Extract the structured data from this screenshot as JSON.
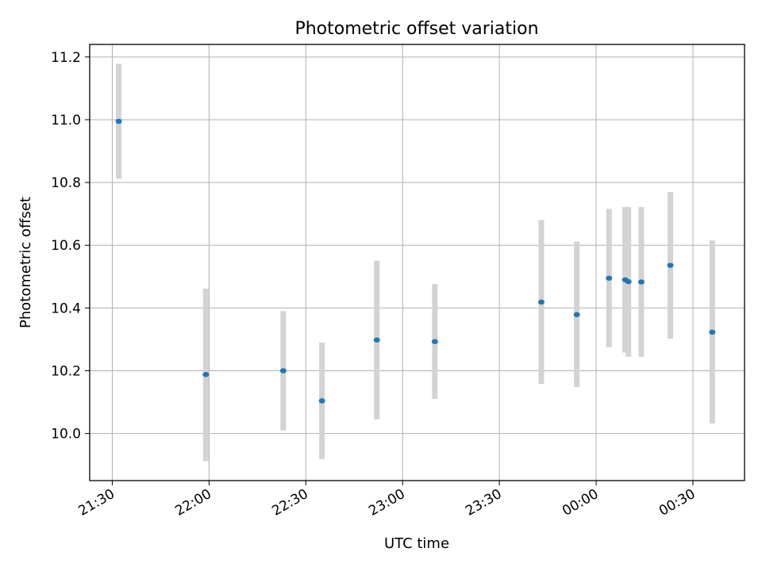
{
  "chart_data": {
    "type": "scatter",
    "title": "Photometric offset variation",
    "xlabel": "UTC time",
    "ylabel": "Photometric offset",
    "x_ticks": [
      "21:30",
      "22:00",
      "22:30",
      "23:00",
      "23:30",
      "00:00",
      "00:30"
    ],
    "y_ticks": [
      "10.0",
      "10.2",
      "10.4",
      "10.6",
      "10.8",
      "11.0",
      "11.2"
    ],
    "xlim": [
      "21:23",
      "00:46"
    ],
    "ylim": [
      9.85,
      11.24
    ],
    "grid": true,
    "marker_color": "#1f77b4",
    "errorbar_color": "#d3d3d3",
    "points": [
      {
        "x": "21:32",
        "y": 10.995,
        "ylow": 10.812,
        "yhigh": 11.178
      },
      {
        "x": "21:59",
        "y": 10.188,
        "ylow": 9.912,
        "yhigh": 10.462
      },
      {
        "x": "22:23",
        "y": 10.2,
        "ylow": 10.01,
        "yhigh": 10.39
      },
      {
        "x": "22:35",
        "y": 10.104,
        "ylow": 9.918,
        "yhigh": 10.29
      },
      {
        "x": "22:52",
        "y": 10.298,
        "ylow": 10.045,
        "yhigh": 10.551
      },
      {
        "x": "23:10",
        "y": 10.293,
        "ylow": 10.11,
        "yhigh": 10.476
      },
      {
        "x": "23:43",
        "y": 10.419,
        "ylow": 10.158,
        "yhigh": 10.68
      },
      {
        "x": "23:54",
        "y": 10.379,
        "ylow": 10.148,
        "yhigh": 10.612
      },
      {
        "x": "00:04",
        "y": 10.495,
        "ylow": 10.275,
        "yhigh": 10.716
      },
      {
        "x": "00:09",
        "y": 10.49,
        "ylow": 10.258,
        "yhigh": 10.722
      },
      {
        "x": "00:10",
        "y": 10.484,
        "ylow": 10.245,
        "yhigh": 10.722
      },
      {
        "x": "00:14",
        "y": 10.483,
        "ylow": 10.245,
        "yhigh": 10.722
      },
      {
        "x": "00:23",
        "y": 10.536,
        "ylow": 10.302,
        "yhigh": 10.77
      },
      {
        "x": "00:36",
        "y": 10.323,
        "ylow": 10.032,
        "yhigh": 10.615
      }
    ]
  }
}
